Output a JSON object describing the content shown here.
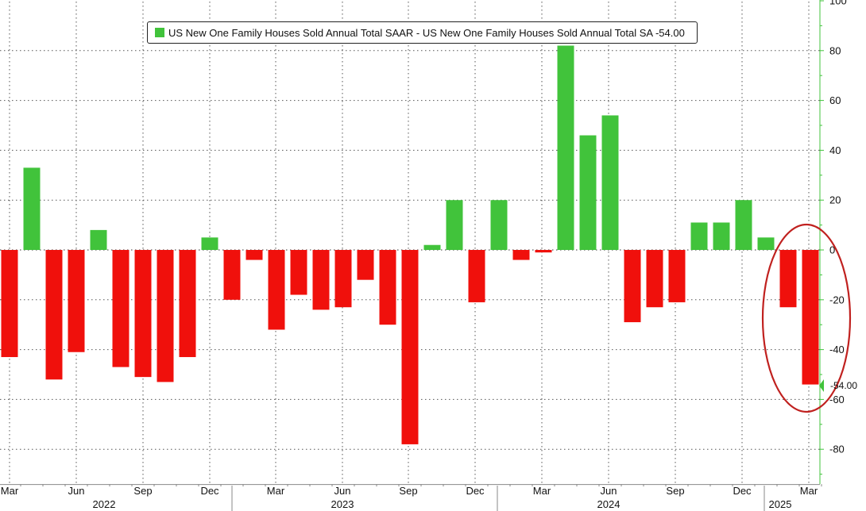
{
  "legend": {
    "label": "US New One Family Houses Sold Annual Total SAAR - US New One Family Houses Sold Annual Total SA -54.00",
    "swatch_color": "#41c33b"
  },
  "last_value_tag": "-54.00",
  "colors": {
    "positive": "#41c33b",
    "negative": "#f0100c",
    "axis": "#41c33b",
    "grid": "#555555",
    "highlight_ellipse": "#c0211f",
    "tag_bg": "#41c33b"
  },
  "chart_data": {
    "type": "bar",
    "title": "",
    "xlabel": "",
    "ylabel": "",
    "ylim": [
      -94,
      100
    ],
    "y_ticks": [
      100,
      80,
      60,
      40,
      20,
      0,
      -20,
      -40,
      -60,
      -80
    ],
    "grid": true,
    "legend_position": "top-center",
    "categories": [
      "2022-03",
      "2022-04",
      "2022-05",
      "2022-06",
      "2022-07",
      "2022-08",
      "2022-09",
      "2022-10",
      "2022-11",
      "2022-12",
      "2023-01",
      "2023-02",
      "2023-03",
      "2023-04",
      "2023-05",
      "2023-06",
      "2023-07",
      "2023-08",
      "2023-09",
      "2023-10",
      "2023-11",
      "2023-12",
      "2024-01",
      "2024-02",
      "2024-03",
      "2024-04",
      "2024-05",
      "2024-06",
      "2024-07",
      "2024-08",
      "2024-09",
      "2024-10",
      "2024-11",
      "2024-12",
      "2025-01",
      "2025-02",
      "2025-03"
    ],
    "series": [
      {
        "values": [
          -43,
          33,
          -52,
          -41,
          8,
          -47,
          -51,
          -53,
          -43,
          5,
          -20,
          -4,
          -32,
          -18,
          -24,
          -23,
          -12,
          -30,
          -78,
          2,
          20,
          -21,
          20,
          -4,
          -1,
          82,
          46,
          54,
          -29,
          -23,
          -21,
          11,
          11,
          20,
          5,
          -23,
          -54
        ]
      }
    ],
    "x_month_labels": [
      {
        "label": "Mar",
        "index": 0
      },
      {
        "label": "Jun",
        "index": 3
      },
      {
        "label": "Sep",
        "index": 6
      },
      {
        "label": "Dec",
        "index": 9
      },
      {
        "label": "Mar",
        "index": 12
      },
      {
        "label": "Jun",
        "index": 15
      },
      {
        "label": "Sep",
        "index": 18
      },
      {
        "label": "Dec",
        "index": 21
      },
      {
        "label": "Mar",
        "index": 24
      },
      {
        "label": "Jun",
        "index": 27
      },
      {
        "label": "Sep",
        "index": 30
      },
      {
        "label": "Dec",
        "index": 33
      },
      {
        "label": "Mar",
        "index": 36
      }
    ],
    "x_year_labels": [
      {
        "label": "2022",
        "start": 0,
        "end": 9
      },
      {
        "label": "2023",
        "start": 10,
        "end": 21
      },
      {
        "label": "2024",
        "start": 22,
        "end": 33
      },
      {
        "label": "2025",
        "start": 34,
        "end": 36
      }
    ],
    "annotations": [
      {
        "type": "ellipse",
        "around": [
          "2025-02",
          "2025-03"
        ],
        "color": "#c0211f"
      }
    ]
  }
}
